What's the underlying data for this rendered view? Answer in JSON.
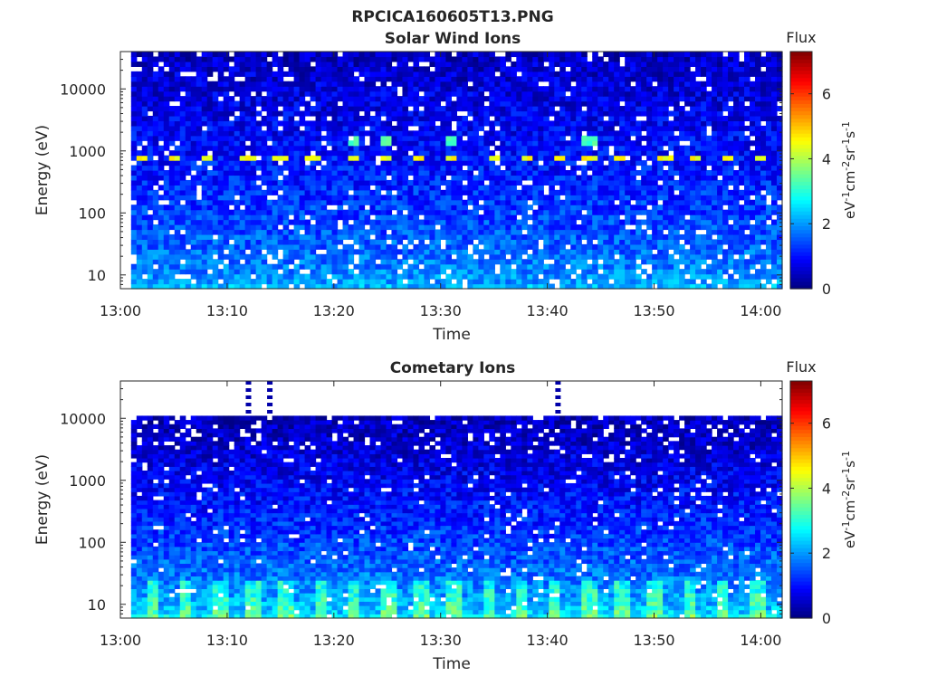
{
  "figure_title": "RPCICA160605T13.PNG",
  "chart_data": [
    {
      "type": "heatmap",
      "title": "Solar Wind Ions",
      "xlabel": "Time",
      "ylabel": "Energy (eV)",
      "x_ticks": [
        "13:00",
        "13:10",
        "13:20",
        "13:30",
        "13:40",
        "13:50",
        "14:00"
      ],
      "xlim": [
        "13:00",
        "14:02"
      ],
      "data_time_range": [
        "13:01",
        "14:02"
      ],
      "y_scale": "log",
      "y_ticks": [
        10,
        100,
        1000,
        10000
      ],
      "ylim": [
        6,
        40000
      ],
      "colorbar": {
        "label": "Flux",
        "units": "eV-1cm-2sr-1s-1",
        "ticks": [
          0,
          2,
          4,
          6
        ],
        "range": [
          0,
          7.3
        ],
        "colormap": "jet"
      },
      "features": [
        {
          "description_energy_eV": 750,
          "peak_value": 4.5,
          "times": [
            "13:02",
            "13:05",
            "13:08",
            "13:12",
            "13:15",
            "13:18",
            "13:22",
            "13:25",
            "13:28",
            "13:31",
            "13:35",
            "13:38",
            "13:41",
            "13:44",
            "13:47",
            "13:51",
            "13:54",
            "13:57",
            "14:00"
          ]
        },
        {
          "description_energy_eV": 1500,
          "peak_value": 3.2,
          "times": [
            "13:22",
            "13:25",
            "13:31",
            "13:44"
          ]
        }
      ],
      "background_level_low_energy": 2.2,
      "background_level_high_energy": 0.5
    },
    {
      "type": "heatmap",
      "title": "Cometary Ions",
      "xlabel": "Time",
      "ylabel": "Energy (eV)",
      "x_ticks": [
        "13:00",
        "13:10",
        "13:20",
        "13:30",
        "13:40",
        "13:50",
        "14:00"
      ],
      "xlim": [
        "13:00",
        "14:02"
      ],
      "data_time_range": [
        "13:01",
        "14:02"
      ],
      "y_scale": "log",
      "y_ticks": [
        10,
        100,
        1000,
        10000
      ],
      "ylim": [
        6,
        40000
      ],
      "data_top_energy_eV": 11000,
      "colorbar": {
        "label": "Flux",
        "units": "eV-1cm-2sr-1s-1",
        "ticks": [
          0,
          2,
          4,
          6
        ],
        "range": [
          0,
          7.3
        ],
        "colormap": "jet"
      },
      "features": [
        {
          "description": "low-energy peaks",
          "energy_eV": 12,
          "peak_value": 3.6
        },
        {
          "description": "isolated high-energy points",
          "times": [
            "13:12",
            "13:14",
            "13:41"
          ],
          "energy_range_eV": [
            11000,
            40000
          ],
          "value": 0.3
        }
      ],
      "background_level_low_energy": 2.6,
      "background_level_high_energy": 0.4
    }
  ]
}
